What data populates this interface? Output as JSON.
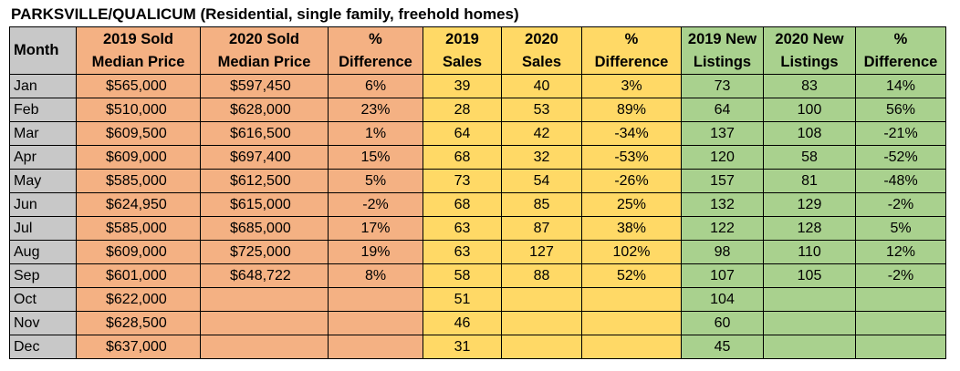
{
  "title": "PARKSVILLE/QUALICUM (Residential, single family, freehold homes)",
  "columns": [
    {
      "line1": "Month",
      "line2": ""
    },
    {
      "line1": "2019 Sold",
      "line2": "Median Price"
    },
    {
      "line1": "2020 Sold",
      "line2": "Median Price"
    },
    {
      "line1": "%",
      "line2": "Difference"
    },
    {
      "line1": "2019",
      "line2": "Sales"
    },
    {
      "line1": "2020",
      "line2": "Sales"
    },
    {
      "line1": "%",
      "line2": "Difference"
    },
    {
      "line1": "2019 New",
      "line2": "Listings"
    },
    {
      "line1": "2020 New",
      "line2": "Listings"
    },
    {
      "line1": "%",
      "line2": "Difference"
    }
  ],
  "colors": {
    "month": "#c8c8c8",
    "price": "#f4b183",
    "sales": "#ffd966",
    "listings": "#a9d18e"
  },
  "rows": [
    [
      "Jan",
      "$565,000",
      "$597,450",
      "6%",
      "39",
      "40",
      "3%",
      "73",
      "83",
      "14%"
    ],
    [
      "Feb",
      "$510,000",
      "$628,000",
      "23%",
      "28",
      "53",
      "89%",
      "64",
      "100",
      "56%"
    ],
    [
      "Mar",
      "$609,500",
      "$616,500",
      "1%",
      "64",
      "42",
      "-34%",
      "137",
      "108",
      "-21%"
    ],
    [
      "Apr",
      "$609,000",
      "$697,400",
      "15%",
      "68",
      "32",
      "-53%",
      "120",
      "58",
      "-52%"
    ],
    [
      "May",
      "$585,000",
      "$612,500",
      "5%",
      "73",
      "54",
      "-26%",
      "157",
      "81",
      "-48%"
    ],
    [
      "Jun",
      "$624,950",
      "$615,000",
      "-2%",
      "68",
      "85",
      "25%",
      "132",
      "129",
      "-2%"
    ],
    [
      "Jul",
      "$585,000",
      "$685,000",
      "17%",
      "63",
      "87",
      "38%",
      "122",
      "128",
      "5%"
    ],
    [
      "Aug",
      "$609,000",
      "$725,000",
      "19%",
      "63",
      "127",
      "102%",
      "98",
      "110",
      "12%"
    ],
    [
      "Sep",
      "$601,000",
      "$648,722",
      "8%",
      "58",
      "88",
      "52%",
      "107",
      "105",
      "-2%"
    ],
    [
      "Oct",
      "$622,000",
      "",
      "",
      "51",
      "",
      "",
      "104",
      "",
      ""
    ],
    [
      "Nov",
      "$628,500",
      "",
      "",
      "46",
      "",
      "",
      "60",
      "",
      ""
    ],
    [
      "Dec",
      "$637,000",
      "",
      "",
      "31",
      "",
      "",
      "45",
      "",
      ""
    ]
  ]
}
